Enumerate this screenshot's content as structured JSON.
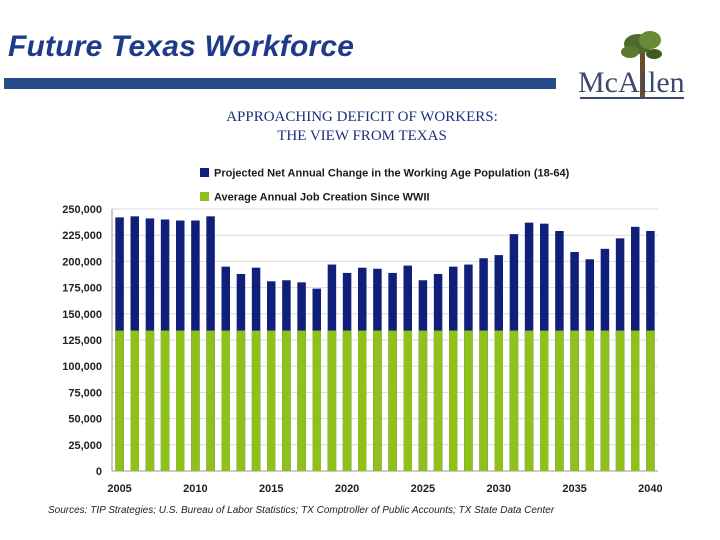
{
  "slide": {
    "title": "Future Texas Workforce",
    "subtitle_line1": "APPROACHING DEFICIT OF WORKERS:",
    "subtitle_line2": "THE VIEW FROM TEXAS",
    "logo_text": "McAllen",
    "source": "Sources: TIP Strategies; U.S. Bureau of Labor Statistics; TX Comptroller of Public Accounts; TX State Data Center"
  },
  "colors": {
    "title": "#1f3a8a",
    "title_bar": "#284b8a",
    "series_population": "#10207a",
    "series_jobs": "#8fc01b",
    "gridline": "#d9d9d9"
  },
  "chart_data": {
    "type": "bar",
    "legend_position": "top",
    "grid": true,
    "ylim": [
      0,
      250000
    ],
    "yticks": [
      0,
      25000,
      50000,
      75000,
      100000,
      125000,
      150000,
      175000,
      200000,
      225000,
      250000
    ],
    "ytick_labels": [
      "0",
      "25,000",
      "50,000",
      "75,000",
      "100,000",
      "125,000",
      "150,000",
      "175,000",
      "200,000",
      "225,000",
      "250,000"
    ],
    "x_tick_labels": [
      "2005",
      "2010",
      "2015",
      "2020",
      "2025",
      "2030",
      "2035",
      "2040"
    ],
    "categories": [
      2005,
      2006,
      2007,
      2008,
      2009,
      2010,
      2011,
      2012,
      2013,
      2014,
      2015,
      2016,
      2017,
      2018,
      2019,
      2020,
      2021,
      2022,
      2023,
      2024,
      2025,
      2026,
      2027,
      2028,
      2029,
      2030,
      2031,
      2032,
      2033,
      2034,
      2035,
      2036,
      2037,
      2038,
      2039,
      2040
    ],
    "series": [
      {
        "name": "Projected Net Annual Change in the Working Age Population (18-64)",
        "values": [
          242000,
          243000,
          241000,
          240000,
          239000,
          239000,
          243000,
          195000,
          188000,
          194000,
          181000,
          182000,
          180000,
          174000,
          197000,
          189000,
          194000,
          193000,
          189000,
          196000,
          182000,
          188000,
          195000,
          197000,
          203000,
          206000,
          226000,
          237000,
          236000,
          229000,
          209000,
          202000,
          212000,
          222000,
          233000,
          229000
        ]
      },
      {
        "name": "Average Annual Job Creation Since WWII",
        "values": [
          134000,
          134000,
          134000,
          134000,
          134000,
          134000,
          134000,
          134000,
          134000,
          134000,
          134000,
          134000,
          134000,
          134000,
          134000,
          134000,
          134000,
          134000,
          134000,
          134000,
          134000,
          134000,
          134000,
          134000,
          134000,
          134000,
          134000,
          134000,
          134000,
          134000,
          134000,
          134000,
          134000,
          134000,
          134000,
          134000
        ]
      }
    ]
  }
}
